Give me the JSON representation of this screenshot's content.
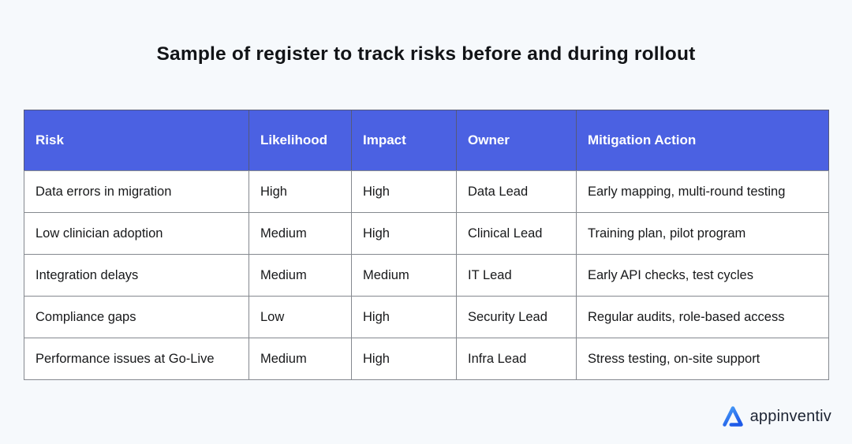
{
  "page": {
    "title": "Sample of register to track risks before and during rollout",
    "background_color": "#f6f9fc"
  },
  "table": {
    "header_bg_color": "#4b61e2",
    "header_text_color": "#ffffff",
    "columns": [
      "Risk",
      "Likelihood",
      "Impact",
      "Owner",
      "Mitigation Action"
    ],
    "rows": [
      {
        "risk": "Data errors in migration",
        "likelihood": "High",
        "impact": "High",
        "owner": "Data Lead",
        "mitigation_action": "Early mapping, multi-round testing"
      },
      {
        "risk": "Low clinician adoption",
        "likelihood": "Medium",
        "impact": "High",
        "owner": "Clinical Lead",
        "mitigation_action": "Training plan, pilot program"
      },
      {
        "risk": "Integration delays",
        "likelihood": "Medium",
        "impact": "Medium",
        "owner": "IT Lead",
        "mitigation_action": "Early API checks, test cycles"
      },
      {
        "risk": "Compliance gaps",
        "likelihood": "Low",
        "impact": "High",
        "owner": "Security Lead",
        "mitigation_action": "Regular audits, role-based access"
      },
      {
        "risk": "Performance issues at Go-Live",
        "likelihood": "Medium",
        "impact": "High",
        "owner": "Infra Lead",
        "mitigation_action": "Stress testing, on-site support"
      }
    ]
  },
  "branding": {
    "logo_text": "appinventiv",
    "logo_icon": "appinventiv-triangle-a",
    "logo_blue_light": "#4aa0f8",
    "logo_blue_dark": "#1e5ae8"
  }
}
